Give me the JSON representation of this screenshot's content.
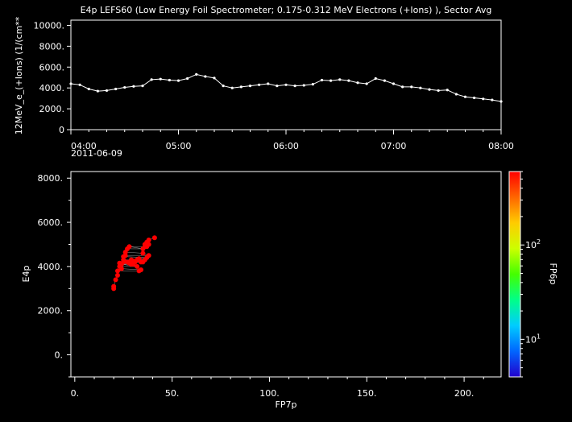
{
  "title": "E4p LEFS60 (Low Energy Foil Spectrometer; 0.175-0.312 MeV Electrons (+Ions) ), Sector Avg",
  "chart_data": [
    {
      "type": "line",
      "ylabel": "12MeV_e_(+Ions) (1/(cm**",
      "xlabel": "",
      "x_ticks": [
        "04:00",
        "05:00",
        "06:00",
        "07:00",
        "08:00"
      ],
      "x_date": "2011-06-09",
      "y_ticks": [
        "0",
        "2000.",
        "4000.",
        "6000.",
        "8000.",
        "10000."
      ],
      "ylim": [
        0,
        10500
      ],
      "xlim_minutes": [
        240,
        480
      ],
      "grid": false,
      "series": [
        {
          "color": "#ffffff",
          "x_minutes": [
            240,
            245,
            250,
            255,
            260,
            265,
            270,
            275,
            280,
            285,
            290,
            295,
            300,
            305,
            310,
            315,
            320,
            325,
            330,
            335,
            340,
            345,
            350,
            355,
            360,
            365,
            370,
            375,
            380,
            385,
            390,
            395,
            400,
            405,
            410,
            415,
            420,
            425,
            430,
            435,
            440,
            445,
            450,
            455,
            460,
            465,
            470,
            475,
            480
          ],
          "values": [
            4400,
            4300,
            3900,
            3700,
            3750,
            3900,
            4050,
            4150,
            4200,
            4800,
            4850,
            4750,
            4700,
            4900,
            5300,
            5100,
            4950,
            4200,
            4000,
            4100,
            4200,
            4300,
            4400,
            4200,
            4300,
            4200,
            4250,
            4350,
            4750,
            4700,
            4800,
            4700,
            4500,
            4400,
            4900,
            4700,
            4400,
            4100,
            4100,
            4000,
            3850,
            3750,
            3800,
            3400,
            3150,
            3050,
            2950,
            2850,
            2700
          ]
        }
      ]
    },
    {
      "type": "scatter",
      "xlabel": "FP7p",
      "ylabel": "E4p",
      "x_ticks": [
        "0.",
        "50.",
        "100.",
        "150.",
        "200."
      ],
      "y_ticks": [
        "0.",
        "2000.",
        "4000.",
        "6000.",
        "8000."
      ],
      "xlim": [
        -2,
        219
      ],
      "ylim": [
        -1000,
        8300
      ],
      "grid": false,
      "colorbar": {
        "label": "FP6p",
        "scale": "log",
        "range": [
          4,
          600
        ],
        "ticks": [
          {
            "base": "10",
            "exp": "1"
          },
          {
            "base": "10",
            "exp": "2"
          }
        ],
        "colors": [
          "#2200cc",
          "#0066ff",
          "#00ccff",
          "#00ff88",
          "#44ff00",
          "#ccff00",
          "#ffcc00",
          "#ff6600",
          "#ff0000"
        ]
      },
      "points": [
        [
          20,
          3000,
          520
        ],
        [
          20,
          3100,
          520
        ],
        [
          21,
          3400,
          520
        ],
        [
          22,
          3800,
          520
        ],
        [
          23,
          4000,
          520
        ],
        [
          23,
          4150,
          520
        ],
        [
          24,
          4100,
          520
        ],
        [
          25,
          4300,
          520
        ],
        [
          25,
          4450,
          520
        ],
        [
          26,
          4500,
          520
        ],
        [
          26,
          4650,
          520
        ],
        [
          27,
          4800,
          520
        ],
        [
          28,
          4900,
          520
        ],
        [
          27,
          4200,
          520
        ],
        [
          28,
          4150,
          520
        ],
        [
          29,
          4300,
          520
        ],
        [
          30,
          4250,
          520
        ],
        [
          30,
          4100,
          520
        ],
        [
          31,
          4200,
          520
        ],
        [
          32,
          4300,
          520
        ],
        [
          33,
          4350,
          520
        ],
        [
          33,
          3800,
          520
        ],
        [
          34,
          3850,
          520
        ],
        [
          34,
          4200,
          520
        ],
        [
          35,
          4600,
          520
        ],
        [
          35,
          4800,
          520
        ],
        [
          36,
          4900,
          520
        ],
        [
          36,
          5000,
          520
        ],
        [
          37,
          5100,
          520
        ],
        [
          38,
          5200,
          520
        ],
        [
          38,
          5000,
          520
        ],
        [
          37,
          4400,
          520
        ],
        [
          36,
          4300,
          520
        ],
        [
          35,
          4200,
          520
        ],
        [
          41,
          5300,
          520
        ],
        [
          32,
          4000,
          520
        ],
        [
          29,
          4100,
          520
        ],
        [
          25,
          4200,
          520
        ],
        [
          24,
          3900,
          520
        ],
        [
          22,
          3600,
          520
        ],
        [
          37,
          4900,
          520
        ],
        [
          38,
          4500,
          520
        ]
      ]
    }
  ]
}
